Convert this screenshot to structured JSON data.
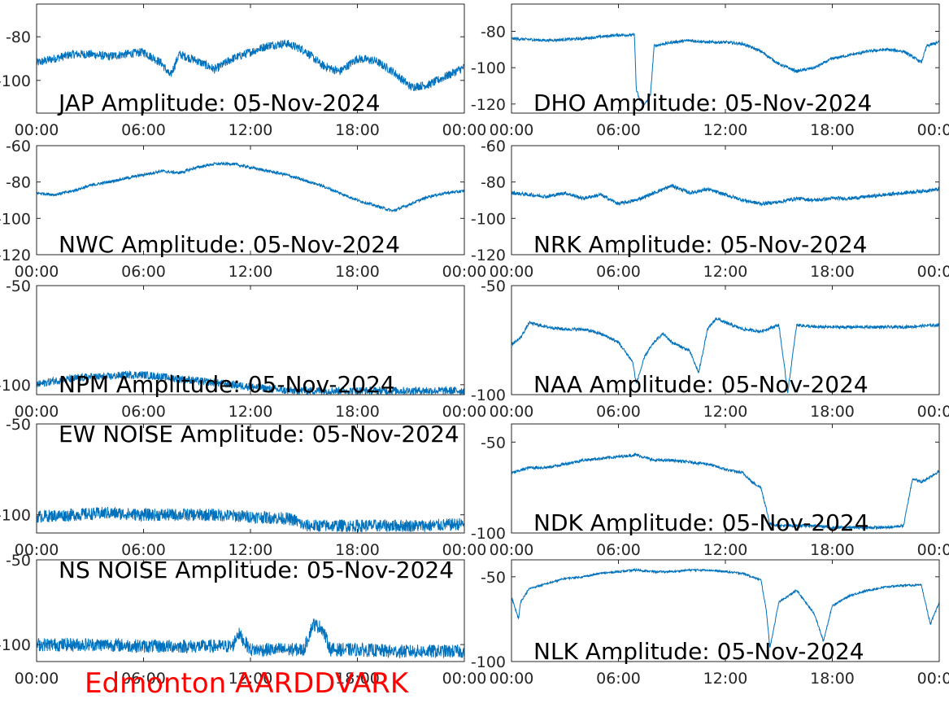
{
  "colors": {
    "series": "#0072BD",
    "axis": "#262626",
    "title_red": "#ff0000"
  },
  "footer_title": "Edmonton AARDDVARK",
  "chart_data": [
    {
      "type": "line",
      "title": "JAP Amplitude: 05-Nov-2024",
      "xlabel": "",
      "ylabel": "",
      "xlim": [
        0,
        24
      ],
      "ylim": [
        -115,
        -65
      ],
      "xticks": [
        0,
        6,
        12,
        18,
        24
      ],
      "xticklabels": [
        "00:00",
        "06:00",
        "12:00",
        "18:00",
        "00:00"
      ],
      "yticks": [
        -80,
        -100
      ],
      "yticklabels": [
        "-80",
        "-100"
      ],
      "grid": false,
      "series": [
        {
          "x": [
            0,
            1,
            2,
            3,
            4,
            5,
            6,
            7,
            7.5,
            8,
            9,
            10,
            11,
            12,
            13,
            14,
            15,
            16,
            17,
            18,
            19,
            20,
            21,
            22,
            23,
            24
          ],
          "y": [
            -92,
            -90,
            -88,
            -88,
            -89,
            -88,
            -87,
            -92,
            -98,
            -88,
            -91,
            -95,
            -90,
            -87,
            -84,
            -83,
            -86,
            -93,
            -96,
            -90,
            -91,
            -96,
            -103,
            -102,
            -98,
            -94
          ],
          "noise": 2
        }
      ]
    },
    {
      "type": "line",
      "title": "DHO Amplitude: 05-Nov-2024",
      "xlabel": "",
      "ylabel": "",
      "xlim": [
        0,
        24
      ],
      "ylim": [
        -125,
        -65
      ],
      "xticks": [
        0,
        6,
        12,
        18,
        24
      ],
      "xticklabels": [
        "00:00",
        "06:00",
        "12:00",
        "18:00",
        "00:00"
      ],
      "yticks": [
        -80,
        -100,
        -120
      ],
      "yticklabels": [
        "-80",
        "-100",
        "-120"
      ],
      "grid": false,
      "series": [
        {
          "x": [
            0,
            2,
            4,
            6,
            6.9,
            7,
            7.2,
            7.5,
            7.8,
            8,
            9,
            10,
            11,
            12,
            13,
            14,
            15,
            16,
            17,
            18,
            19,
            20,
            21,
            22,
            23,
            23.3,
            24
          ],
          "y": [
            -84,
            -85,
            -84,
            -82,
            -82,
            -112,
            -118,
            -120,
            -115,
            -88,
            -86,
            -85,
            -86,
            -86,
            -87,
            -91,
            -98,
            -102,
            -100,
            -95,
            -93,
            -91,
            -90,
            -91,
            -97,
            -88,
            -86
          ],
          "noise": 0.8
        }
      ]
    },
    {
      "type": "line",
      "title": "NWC Amplitude: 05-Nov-2024",
      "xlabel": "",
      "ylabel": "",
      "xlim": [
        0,
        24
      ],
      "ylim": [
        -120,
        -60
      ],
      "xticks": [
        0,
        6,
        12,
        18,
        24
      ],
      "xticklabels": [
        "00:00",
        "06:00",
        "12:00",
        "18:00",
        "00:00"
      ],
      "yticks": [
        -60,
        -80,
        -100,
        -120
      ],
      "yticklabels": [
        "-60",
        "-80",
        "-100",
        "-120"
      ],
      "grid": false,
      "series": [
        {
          "x": [
            0,
            1,
            2,
            3,
            4,
            5,
            6,
            7,
            8,
            9,
            10,
            11,
            12,
            13,
            14,
            15,
            16,
            17,
            18,
            19,
            20,
            21,
            22,
            23,
            24
          ],
          "y": [
            -86,
            -87,
            -85,
            -82,
            -80,
            -78,
            -76,
            -74,
            -75,
            -72,
            -70,
            -70,
            -72,
            -74,
            -76,
            -79,
            -82,
            -86,
            -90,
            -93,
            -96,
            -92,
            -88,
            -86,
            -85
          ],
          "noise": 0.8
        }
      ]
    },
    {
      "type": "line",
      "title": "NRK Amplitude: 05-Nov-2024",
      "xlabel": "",
      "ylabel": "",
      "xlim": [
        0,
        24
      ],
      "ylim": [
        -120,
        -60
      ],
      "xticks": [
        0,
        6,
        12,
        18,
        24
      ],
      "xticklabels": [
        "00:00",
        "06:00",
        "12:00",
        "18:00",
        "00:00"
      ],
      "yticks": [
        -60,
        -80,
        -100,
        -120
      ],
      "yticklabels": [
        "-60",
        "-80",
        "-100",
        "-120"
      ],
      "grid": false,
      "series": [
        {
          "x": [
            0,
            1,
            2,
            3,
            4,
            5,
            6,
            7,
            8,
            9,
            10,
            11,
            12,
            13,
            14,
            15,
            16,
            17,
            18,
            19,
            20,
            21,
            22,
            23,
            24
          ],
          "y": [
            -86,
            -87,
            -88,
            -86,
            -89,
            -87,
            -92,
            -90,
            -86,
            -82,
            -86,
            -84,
            -87,
            -90,
            -92,
            -91,
            -89,
            -90,
            -89,
            -89,
            -88,
            -87,
            -86,
            -85,
            -84
          ],
          "noise": 1
        }
      ]
    },
    {
      "type": "line",
      "title": "NPM Amplitude: 05-Nov-2024",
      "xlabel": "",
      "ylabel": "",
      "xlim": [
        0,
        24
      ],
      "ylim": [
        -105,
        -50
      ],
      "xticks": [
        0,
        6,
        12,
        18,
        24
      ],
      "xticklabels": [
        "00:00",
        "06:00",
        "12:00",
        "18:00",
        "00:00"
      ],
      "yticks": [
        -50,
        -100
      ],
      "yticklabels": [
        "-50",
        "-100"
      ],
      "grid": false,
      "series": [
        {
          "x": [
            0,
            1,
            2,
            3,
            4,
            5,
            6,
            7,
            8,
            9,
            10,
            11,
            12,
            13,
            14,
            16,
            18,
            20,
            22,
            24
          ],
          "y": [
            -100,
            -98,
            -97,
            -96,
            -96,
            -95,
            -95,
            -96,
            -97,
            -98,
            -99,
            -100,
            -101,
            -102,
            -103,
            -103,
            -103,
            -103,
            -103,
            -103
          ],
          "noise": 2
        }
      ]
    },
    {
      "type": "line",
      "title": "NAA Amplitude: 05-Nov-2024",
      "xlabel": "",
      "ylabel": "",
      "xlim": [
        0,
        24
      ],
      "ylim": [
        -100,
        -50
      ],
      "xticks": [
        0,
        6,
        12,
        18,
        24
      ],
      "xticklabels": [
        "00:00",
        "06:00",
        "12:00",
        "18:00",
        "00:00"
      ],
      "yticks": [
        -50,
        -100
      ],
      "yticklabels": [
        "-50",
        "-100"
      ],
      "grid": false,
      "series": [
        {
          "x": [
            0,
            0.5,
            1,
            2,
            3,
            4,
            5,
            6,
            6.8,
            7,
            7.5,
            8,
            8.5,
            9,
            10,
            10.5,
            11,
            11.5,
            12,
            13,
            14,
            15,
            15.5,
            16,
            17,
            18,
            20,
            22,
            24
          ],
          "y": [
            -77,
            -74,
            -67,
            -69,
            -70,
            -70,
            -72,
            -76,
            -85,
            -95,
            -82,
            -76,
            -72,
            -76,
            -80,
            -90,
            -70,
            -65,
            -67,
            -70,
            -71,
            -68,
            -99,
            -68,
            -69,
            -69,
            -69,
            -69,
            -68
          ],
          "noise": 0.7
        }
      ]
    },
    {
      "type": "line",
      "title": "EW NOISE Amplitude: 05-Nov-2024",
      "xlabel": "",
      "ylabel": "",
      "xlim": [
        0,
        24
      ],
      "ylim": [
        -110,
        -50
      ],
      "xticks": [
        0,
        6,
        12,
        18,
        24
      ],
      "xticklabels": [
        "00:00",
        "06:00",
        "12:00",
        "18:00",
        "00:00"
      ],
      "yticks": [
        -50,
        -100
      ],
      "yticklabels": [
        "-50",
        "-100"
      ],
      "grid": false,
      "series": [
        {
          "x": [
            0,
            2,
            4,
            6,
            8,
            10,
            12,
            14,
            14.5,
            15,
            16,
            18,
            20,
            22,
            24
          ],
          "y": [
            -101,
            -100,
            -99,
            -100,
            -100,
            -100,
            -101,
            -102,
            -103,
            -106,
            -106,
            -106,
            -106,
            -106,
            -105
          ],
          "noise": 3.5
        }
      ]
    },
    {
      "type": "line",
      "title": "NDK Amplitude: 05-Nov-2024",
      "xlabel": "",
      "ylabel": "",
      "xlim": [
        0,
        24
      ],
      "ylim": [
        -100,
        -40
      ],
      "xticks": [
        0,
        6,
        12,
        18,
        24
      ],
      "xticklabels": [
        "00:00",
        "06:00",
        "12:00",
        "18:00",
        "00:00"
      ],
      "yticks": [
        -50,
        -100
      ],
      "yticklabels": [
        "-50",
        "-100"
      ],
      "grid": false,
      "series": [
        {
          "x": [
            0,
            1,
            2,
            3,
            4,
            5,
            6,
            7,
            8,
            9,
            10,
            11,
            12,
            13,
            13.5,
            14,
            14.5,
            15,
            16,
            17,
            18,
            19,
            20,
            21,
            22,
            22.5,
            23,
            24
          ],
          "y": [
            -67,
            -64,
            -64,
            -62,
            -60,
            -59,
            -58,
            -57,
            -60,
            -60,
            -61,
            -62,
            -65,
            -67,
            -72,
            -75,
            -95,
            -96,
            -96,
            -96,
            -97,
            -97,
            -97,
            -97,
            -96,
            -70,
            -72,
            -66
          ],
          "noise": 0.8
        }
      ]
    },
    {
      "type": "line",
      "title": "NS NOISE Amplitude: 05-Nov-2024",
      "xlabel": "",
      "ylabel": "",
      "xlim": [
        0,
        24
      ],
      "ylim": [
        -110,
        -50
      ],
      "xticks": [
        0,
        6,
        12,
        18,
        24
      ],
      "xticklabels": [
        "00:00",
        "06:00",
        "12:00",
        "18:00",
        "00:00"
      ],
      "yticks": [
        -50,
        -100
      ],
      "yticklabels": [
        "-50",
        "-100"
      ],
      "grid": false,
      "series": [
        {
          "x": [
            0,
            2,
            4,
            6,
            8,
            10,
            11,
            11.3,
            12,
            13,
            14,
            15,
            15.5,
            16,
            16.5,
            18,
            20,
            22,
            24
          ],
          "y": [
            -100,
            -100,
            -100,
            -101,
            -101,
            -101,
            -101,
            -93,
            -103,
            -103,
            -103,
            -103,
            -88,
            -90,
            -103,
            -103,
            -104,
            -104,
            -104
          ],
          "noise": 4
        }
      ]
    },
    {
      "type": "line",
      "title": "NLK Amplitude: 05-Nov-2024",
      "xlabel": "",
      "ylabel": "",
      "xlim": [
        0,
        24
      ],
      "ylim": [
        -100,
        -40
      ],
      "xticks": [
        0,
        6,
        12,
        18,
        24
      ],
      "xticklabels": [
        "00:00",
        "06:00",
        "12:00",
        "18:00",
        "00:00"
      ],
      "yticks": [
        -50,
        -100
      ],
      "yticklabels": [
        "-50",
        "-100"
      ],
      "grid": false,
      "series": [
        {
          "x": [
            0,
            0.4,
            0.5,
            1,
            2,
            3,
            4,
            5,
            6,
            7,
            8,
            9,
            10,
            11,
            12,
            13,
            14,
            14.3,
            14.5,
            15,
            16,
            17,
            17.5,
            18,
            19,
            20,
            21,
            22,
            23,
            23.5,
            24
          ],
          "y": [
            -62,
            -75,
            -65,
            -57,
            -54,
            -51,
            -50,
            -48,
            -47,
            -46,
            -47,
            -47,
            -46,
            -46,
            -47,
            -48,
            -52,
            -70,
            -92,
            -65,
            -58,
            -72,
            -88,
            -67,
            -61,
            -58,
            -56,
            -55,
            -55,
            -78,
            -65
          ],
          "noise": 0.6
        }
      ]
    }
  ]
}
